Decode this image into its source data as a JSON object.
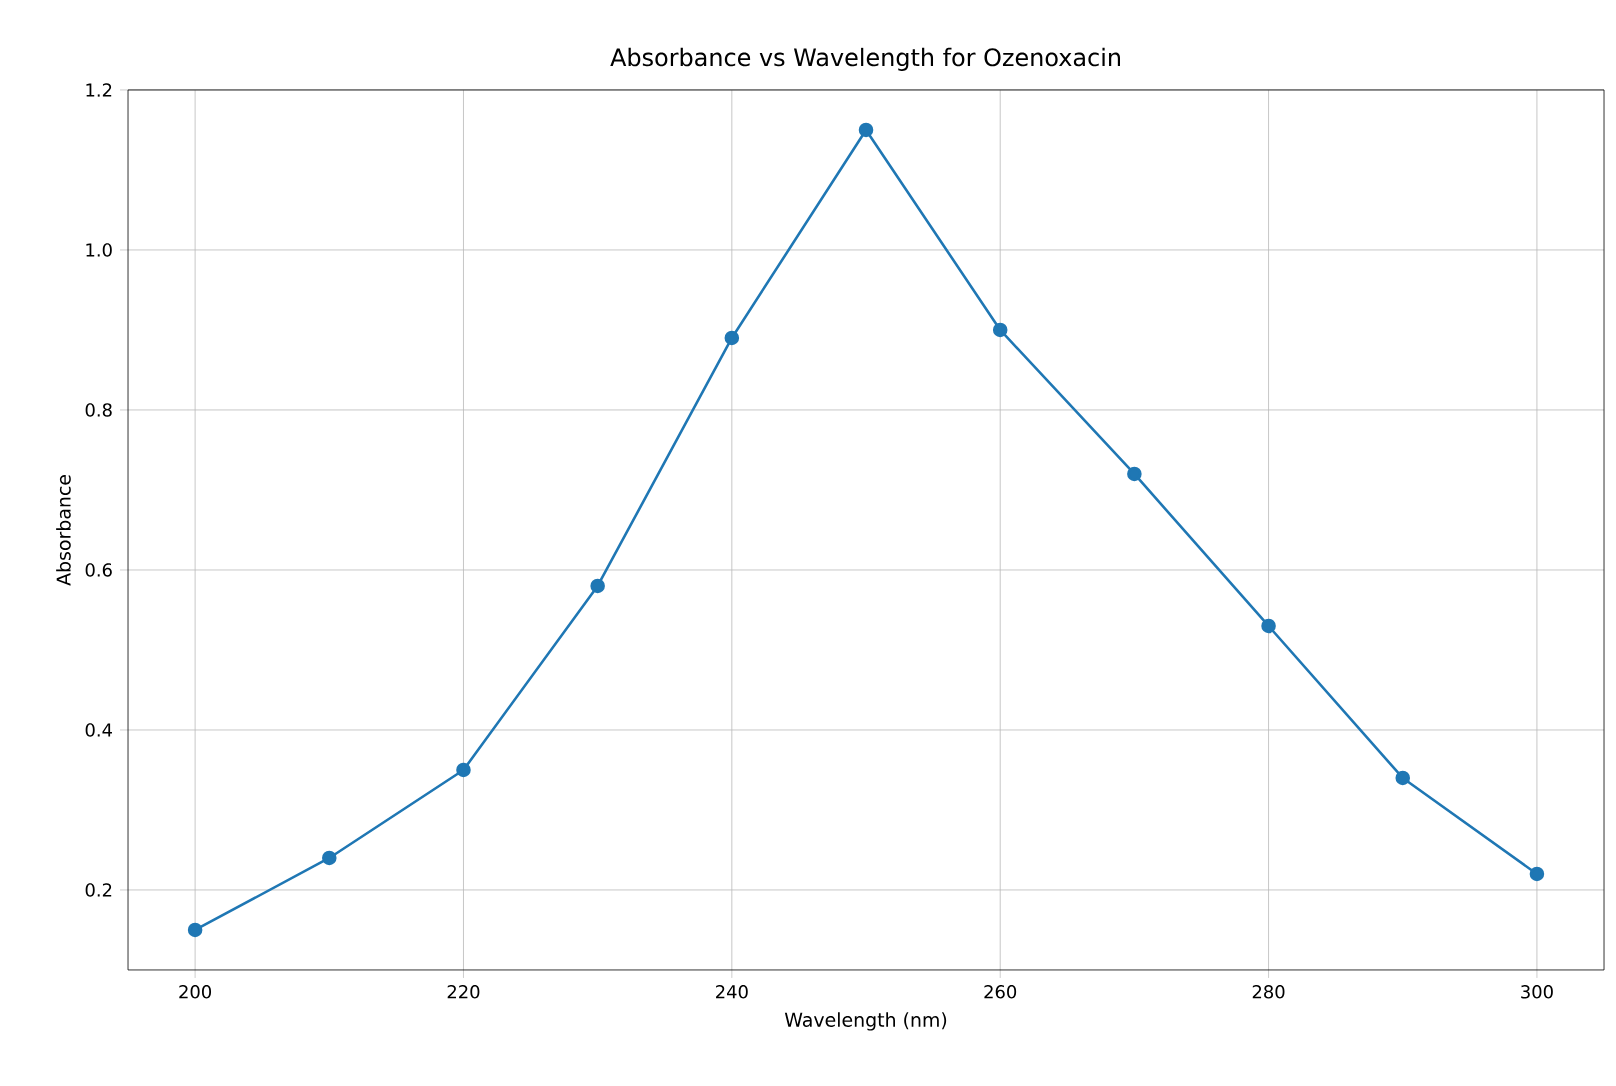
{
  "chart_data": {
    "type": "line",
    "title": "Absorbance vs Wavelength for Ozenoxacin",
    "xlabel": "Wavelength (nm)",
    "ylabel": "Absorbance",
    "x": [
      200,
      210,
      220,
      230,
      240,
      250,
      260,
      270,
      280,
      290,
      300
    ],
    "series": [
      {
        "color": "#1f77b4",
        "values": [
          0.15,
          0.24,
          0.35,
          0.58,
          0.89,
          1.15,
          0.9,
          0.72,
          0.53,
          0.34,
          0.22
        ]
      }
    ],
    "xlim": [
      195,
      305
    ],
    "ylim": [
      0.1,
      1.2
    ],
    "xticks": [
      {
        "value": 200,
        "label": "200"
      },
      {
        "value": 220,
        "label": "220"
      },
      {
        "value": 240,
        "label": "240"
      },
      {
        "value": 260,
        "label": "260"
      },
      {
        "value": 280,
        "label": "280"
      },
      {
        "value": 300,
        "label": "300"
      }
    ],
    "yticks": [
      {
        "value": 0.2,
        "label": "0.2"
      },
      {
        "value": 0.4,
        "label": "0.4"
      },
      {
        "value": 0.6,
        "label": "0.6"
      },
      {
        "value": 0.8,
        "label": "0.8"
      },
      {
        "value": 1.0,
        "label": "1.0"
      },
      {
        "value": 1.2,
        "label": "1.2"
      }
    ],
    "grid": true,
    "marker": "circle",
    "line_style": "solid"
  }
}
